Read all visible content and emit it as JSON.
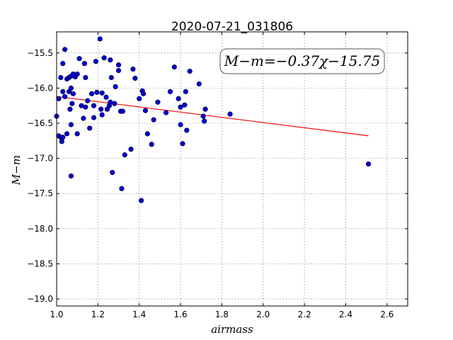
{
  "chart_data": {
    "type": "scatter",
    "title": "2020-07-21_031806",
    "xlabel": "airmass",
    "ylabel": "M−m",
    "xlim": [
      1.0,
      2.7
    ],
    "ylim": [
      -19.1,
      -15.2
    ],
    "y_inverted": true,
    "grid": true,
    "x_ticks": [
      "1.0",
      "1.2",
      "1.4",
      "1.6",
      "1.8",
      "2.0",
      "2.2",
      "2.4",
      "2.6"
    ],
    "y_ticks": [
      "−15.5",
      "−16.0",
      "−16.5",
      "−17.0",
      "−17.5",
      "−18.0",
      "−18.5",
      "−19.0"
    ],
    "annotation": "M−m=−0.37χ−15.75",
    "fit": {
      "slope": -0.37,
      "intercept": -15.75,
      "x_range": [
        1.0,
        2.51
      ],
      "color": "#ff0000"
    },
    "point_color": "#0000cc",
    "points": [
      [
        1.0,
        -16.4
      ],
      [
        1.01,
        -16.15
      ],
      [
        1.01,
        -16.68
      ],
      [
        1.02,
        -15.85
      ],
      [
        1.02,
        -16.7
      ],
      [
        1.025,
        -16.76
      ],
      [
        1.03,
        -15.65
      ],
      [
        1.03,
        -16.05
      ],
      [
        1.03,
        -16.7
      ],
      [
        1.04,
        -15.45
      ],
      [
        1.04,
        -16.12
      ],
      [
        1.05,
        -15.87
      ],
      [
        1.05,
        -16.65
      ],
      [
        1.06,
        -15.85
      ],
      [
        1.06,
        -16.05
      ],
      [
        1.065,
        -16.3
      ],
      [
        1.07,
        -15.83
      ],
      [
        1.07,
        -16.0
      ],
      [
        1.07,
        -16.52
      ],
      [
        1.07,
        -17.25
      ],
      [
        1.075,
        -16.22
      ],
      [
        1.08,
        -16.08
      ],
      [
        1.08,
        -15.8
      ],
      [
        1.09,
        -15.84
      ],
      [
        1.1,
        -15.8
      ],
      [
        1.1,
        -16.65
      ],
      [
        1.11,
        -15.58
      ],
      [
        1.12,
        -16.25
      ],
      [
        1.13,
        -16.43
      ],
      [
        1.135,
        -15.65
      ],
      [
        1.14,
        -16.27
      ],
      [
        1.14,
        -15.85
      ],
      [
        1.15,
        -16.18
      ],
      [
        1.16,
        -16.57
      ],
      [
        1.17,
        -16.08
      ],
      [
        1.18,
        -16.42
      ],
      [
        1.18,
        -16.25
      ],
      [
        1.19,
        -15.62
      ],
      [
        1.195,
        -16.06
      ],
      [
        1.21,
        -15.3
      ],
      [
        1.215,
        -16.3
      ],
      [
        1.22,
        -16.38
      ],
      [
        1.22,
        -16.07
      ],
      [
        1.23,
        -15.57
      ],
      [
        1.24,
        -16.13
      ],
      [
        1.245,
        -16.3
      ],
      [
        1.255,
        -16.25
      ],
      [
        1.26,
        -16.2
      ],
      [
        1.26,
        -15.6
      ],
      [
        1.265,
        -15.85
      ],
      [
        1.27,
        -17.2
      ],
      [
        1.28,
        -16.22
      ],
      [
        1.285,
        -15.98
      ],
      [
        1.3,
        -15.67
      ],
      [
        1.3,
        -15.75
      ],
      [
        1.31,
        -16.33
      ],
      [
        1.315,
        -17.43
      ],
      [
        1.32,
        -16.33
      ],
      [
        1.33,
        -16.95
      ],
      [
        1.36,
        -16.87
      ],
      [
        1.37,
        -15.73
      ],
      [
        1.38,
        -15.86
      ],
      [
        1.4,
        -16.15
      ],
      [
        1.41,
        -17.6
      ],
      [
        1.415,
        -16.04
      ],
      [
        1.42,
        -16.08
      ],
      [
        1.43,
        -16.32
      ],
      [
        1.44,
        -16.65
      ],
      [
        1.46,
        -16.8
      ],
      [
        1.47,
        -16.45
      ],
      [
        1.49,
        -16.2
      ],
      [
        1.53,
        -16.35
      ],
      [
        1.55,
        -16.05
      ],
      [
        1.57,
        -15.7
      ],
      [
        1.59,
        -16.15
      ],
      [
        1.6,
        -16.27
      ],
      [
        1.6,
        -16.52
      ],
      [
        1.61,
        -16.79
      ],
      [
        1.62,
        -16.24
      ],
      [
        1.625,
        -16.05
      ],
      [
        1.63,
        -16.6
      ],
      [
        1.645,
        -15.76
      ],
      [
        1.69,
        -15.94
      ],
      [
        1.71,
        -16.4
      ],
      [
        1.715,
        -16.47
      ],
      [
        1.72,
        -16.3
      ],
      [
        1.84,
        -16.37
      ],
      [
        2.51,
        -17.08
      ]
    ]
  }
}
